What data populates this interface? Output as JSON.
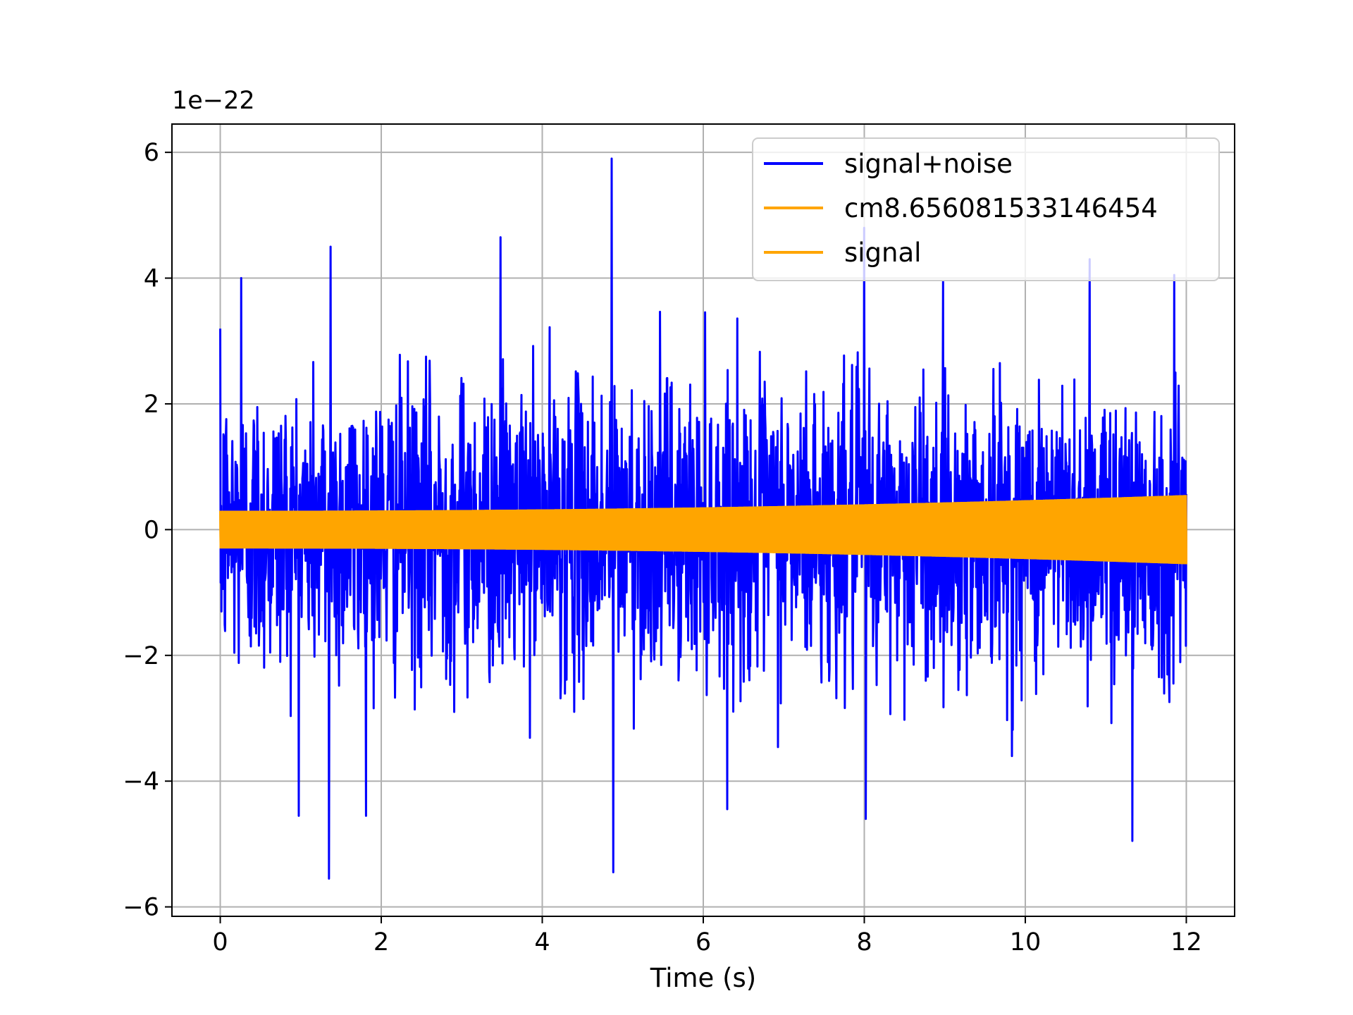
{
  "chart_data": {
    "type": "line",
    "title": "",
    "xlabel": "Time (s)",
    "ylabel": "",
    "y_offset_text": "1e−22",
    "xlim": [
      -0.6,
      12.6
    ],
    "ylim": [
      -6.15,
      6.45
    ],
    "x_ticks": [
      0,
      2,
      4,
      6,
      8,
      10,
      12
    ],
    "x_tick_labels": [
      "0",
      "2",
      "4",
      "6",
      "8",
      "10",
      "12"
    ],
    "y_ticks": [
      -6,
      -4,
      -2,
      0,
      2,
      4,
      6
    ],
    "y_tick_labels": [
      "−6",
      "−4",
      "−2",
      "0",
      "2",
      "4",
      "6"
    ],
    "grid": true,
    "legend_position": "upper-right",
    "series": [
      {
        "name": "signal+noise",
        "color": "#0000ff",
        "kind": "noisy time series",
        "x_range": [
          0,
          12
        ],
        "typical_abs_amplitude": 1.6,
        "max_value": 5.9,
        "min_value": -5.55,
        "notable_peaks": [
          {
            "x": 0.26,
            "y": 4.0
          },
          {
            "x": 1.37,
            "y": 4.5
          },
          {
            "x": 1.35,
            "y": -5.55
          },
          {
            "x": 3.48,
            "y": 4.65
          },
          {
            "x": 4.86,
            "y": 5.9
          },
          {
            "x": 4.88,
            "y": -5.45
          },
          {
            "x": 8.0,
            "y": 4.8
          },
          {
            "x": 8.02,
            "y": -4.6
          },
          {
            "x": 10.8,
            "y": 4.3
          },
          {
            "x": 11.33,
            "y": -4.95
          },
          {
            "x": 11.85,
            "y": 4.05
          }
        ]
      },
      {
        "name": "cm8.656081533146454",
        "color": "#ffa500",
        "kind": "chirp",
        "x_range": [
          0,
          12
        ],
        "amplitude_start": 0.3,
        "amplitude_end": 0.55
      },
      {
        "name": "signal",
        "color": "#ffa500",
        "kind": "chirp",
        "x_range": [
          0,
          12
        ],
        "amplitude_start": 0.3,
        "amplitude_end": 0.55
      }
    ]
  }
}
